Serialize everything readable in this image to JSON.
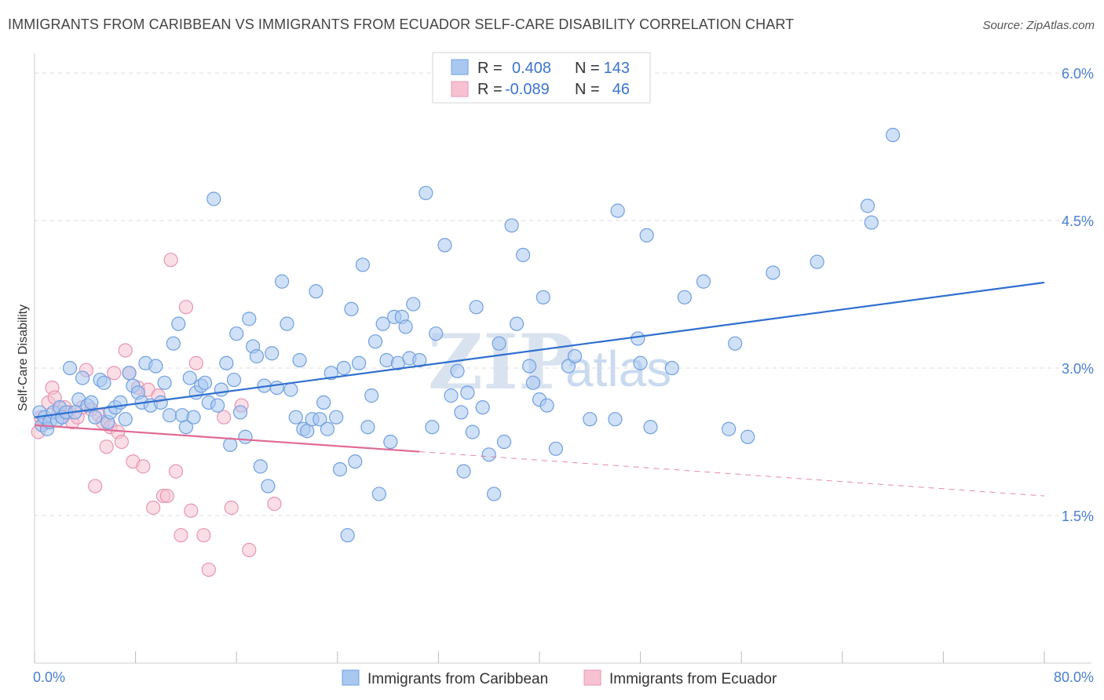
{
  "header": {
    "title": "IMMIGRANTS FROM CARIBBEAN VS IMMIGRANTS FROM ECUADOR SELF-CARE DISABILITY CORRELATION CHART",
    "source": "Source: ZipAtlas.com"
  },
  "watermark": {
    "zip": "ZIP",
    "atlas": "atlas"
  },
  "legend": {
    "rows": [
      {
        "r_label": "R =",
        "r_value": "0.408",
        "n_label": "N =",
        "n_value": "143"
      },
      {
        "r_label": "R =",
        "r_value": "-0.089",
        "n_label": "N =",
        "n_value": "46"
      }
    ]
  },
  "colors": {
    "caribbean_fill": "#a9c8f0",
    "caribbean_stroke": "#6f9fe0",
    "caribbean_line": "#2f6fcf",
    "ecuador_fill": "#f6c2d2",
    "ecuador_stroke": "#e895b0",
    "ecuador_line": "#e06a94"
  },
  "chart_data": {
    "type": "scatter",
    "title": "IMMIGRANTS FROM CARIBBEAN VS IMMIGRANTS FROM ECUADOR SELF-CARE DISABILITY CORRELATION CHART",
    "xlabel": "",
    "ylabel": "Self-Care Disability",
    "xlim": [
      0,
      80
    ],
    "ylim": [
      0,
      6.2
    ],
    "x_tick_labels": [
      "0.0%",
      "80.0%"
    ],
    "y_ticks": [
      1.5,
      3.0,
      4.5,
      6.0
    ],
    "y_tick_labels": [
      "1.5%",
      "3.0%",
      "4.5%",
      "6.0%"
    ],
    "series": [
      {
        "name": "Immigrants from Caribbean",
        "r": 0.408,
        "n": 143,
        "trend": {
          "x": [
            0,
            80
          ],
          "y": [
            2.5,
            3.87
          ]
        },
        "points": [
          [
            0.4,
            2.55
          ],
          [
            0.6,
            2.42
          ],
          [
            0.8,
            2.5
          ],
          [
            1.0,
            2.38
          ],
          [
            1.2,
            2.45
          ],
          [
            1.5,
            2.55
          ],
          [
            1.8,
            2.47
          ],
          [
            2.0,
            2.6
          ],
          [
            2.2,
            2.5
          ],
          [
            2.5,
            2.55
          ],
          [
            2.8,
            3.0
          ],
          [
            3.2,
            2.55
          ],
          [
            3.5,
            2.68
          ],
          [
            3.8,
            2.9
          ],
          [
            4.2,
            2.62
          ],
          [
            4.5,
            2.65
          ],
          [
            4.8,
            2.5
          ],
          [
            5.2,
            2.88
          ],
          [
            5.5,
            2.85
          ],
          [
            5.8,
            2.45
          ],
          [
            6.0,
            2.55
          ],
          [
            6.4,
            2.6
          ],
          [
            6.8,
            2.65
          ],
          [
            7.2,
            2.48
          ],
          [
            7.5,
            2.95
          ],
          [
            7.8,
            2.82
          ],
          [
            8.2,
            2.75
          ],
          [
            8.5,
            2.65
          ],
          [
            8.8,
            3.05
          ],
          [
            9.2,
            2.62
          ],
          [
            9.6,
            3.02
          ],
          [
            10.0,
            2.65
          ],
          [
            10.3,
            2.85
          ],
          [
            10.7,
            2.52
          ],
          [
            11.0,
            3.25
          ],
          [
            11.4,
            3.45
          ],
          [
            11.7,
            2.52
          ],
          [
            12.0,
            2.4
          ],
          [
            12.3,
            2.9
          ],
          [
            12.6,
            2.5
          ],
          [
            12.8,
            2.75
          ],
          [
            13.2,
            2.82
          ],
          [
            13.5,
            2.85
          ],
          [
            13.8,
            2.65
          ],
          [
            14.2,
            4.72
          ],
          [
            14.5,
            2.62
          ],
          [
            14.8,
            2.78
          ],
          [
            15.2,
            3.05
          ],
          [
            15.5,
            2.22
          ],
          [
            15.8,
            2.88
          ],
          [
            16.0,
            3.35
          ],
          [
            16.3,
            2.55
          ],
          [
            16.7,
            2.3
          ],
          [
            17.0,
            3.5
          ],
          [
            17.3,
            3.22
          ],
          [
            17.6,
            3.12
          ],
          [
            17.9,
            2.0
          ],
          [
            18.2,
            2.82
          ],
          [
            18.5,
            1.8
          ],
          [
            18.8,
            3.15
          ],
          [
            19.2,
            2.8
          ],
          [
            19.6,
            3.88
          ],
          [
            20.0,
            3.45
          ],
          [
            20.3,
            2.78
          ],
          [
            20.7,
            2.5
          ],
          [
            21.0,
            3.08
          ],
          [
            21.3,
            2.38
          ],
          [
            21.6,
            2.36
          ],
          [
            22.0,
            2.48
          ],
          [
            22.3,
            3.78
          ],
          [
            22.6,
            2.48
          ],
          [
            22.9,
            2.65
          ],
          [
            23.2,
            2.38
          ],
          [
            23.5,
            2.95
          ],
          [
            23.9,
            2.5
          ],
          [
            24.2,
            1.97
          ],
          [
            24.5,
            3.0
          ],
          [
            24.8,
            1.3
          ],
          [
            25.1,
            3.6
          ],
          [
            25.4,
            2.05
          ],
          [
            25.7,
            3.05
          ],
          [
            26.0,
            4.05
          ],
          [
            26.4,
            2.4
          ],
          [
            26.7,
            2.72
          ],
          [
            27.0,
            3.27
          ],
          [
            27.3,
            1.72
          ],
          [
            27.6,
            3.45
          ],
          [
            27.9,
            3.08
          ],
          [
            28.2,
            2.25
          ],
          [
            28.5,
            3.52
          ],
          [
            28.8,
            3.05
          ],
          [
            29.1,
            3.52
          ],
          [
            29.4,
            3.42
          ],
          [
            29.7,
            3.1
          ],
          [
            30.0,
            3.65
          ],
          [
            30.5,
            3.08
          ],
          [
            31.0,
            4.78
          ],
          [
            31.5,
            2.4
          ],
          [
            31.8,
            3.35
          ],
          [
            32.5,
            4.25
          ],
          [
            33.0,
            2.72
          ],
          [
            33.5,
            2.97
          ],
          [
            33.8,
            2.55
          ],
          [
            34.0,
            1.95
          ],
          [
            34.3,
            2.75
          ],
          [
            34.7,
            2.35
          ],
          [
            35.0,
            3.62
          ],
          [
            35.5,
            2.6
          ],
          [
            36.0,
            2.12
          ],
          [
            36.4,
            1.72
          ],
          [
            36.8,
            3.25
          ],
          [
            37.2,
            2.25
          ],
          [
            37.8,
            4.45
          ],
          [
            38.2,
            3.45
          ],
          [
            38.7,
            4.15
          ],
          [
            39.2,
            3.02
          ],
          [
            39.5,
            2.85
          ],
          [
            40.0,
            2.68
          ],
          [
            40.3,
            3.72
          ],
          [
            40.6,
            2.62
          ],
          [
            41.3,
            2.18
          ],
          [
            42.3,
            3.02
          ],
          [
            42.8,
            3.12
          ],
          [
            44.0,
            2.48
          ],
          [
            46.0,
            2.48
          ],
          [
            46.2,
            4.6
          ],
          [
            47.8,
            3.3
          ],
          [
            48.0,
            3.05
          ],
          [
            48.5,
            4.35
          ],
          [
            48.8,
            2.4
          ],
          [
            50.5,
            3.0
          ],
          [
            51.5,
            3.72
          ],
          [
            53.0,
            3.88
          ],
          [
            55.0,
            2.38
          ],
          [
            55.5,
            3.25
          ],
          [
            56.5,
            2.3
          ],
          [
            58.5,
            3.97
          ],
          [
            62.0,
            4.08
          ],
          [
            66.0,
            4.65
          ],
          [
            66.3,
            4.48
          ],
          [
            68.0,
            5.37
          ]
        ]
      },
      {
        "name": "Immigrants from Ecuador",
        "r": -0.089,
        "n": 46,
        "trend": {
          "x": [
            0,
            30.5
          ],
          "y": [
            2.42,
            2.15
          ]
        },
        "trend_dashed": {
          "x": [
            30.5,
            80
          ],
          "y": [
            2.15,
            1.7
          ]
        },
        "points": [
          [
            0.3,
            2.35
          ],
          [
            0.5,
            2.5
          ],
          [
            0.8,
            2.45
          ],
          [
            1.1,
            2.65
          ],
          [
            1.4,
            2.8
          ],
          [
            1.6,
            2.7
          ],
          [
            1.9,
            2.55
          ],
          [
            2.2,
            2.5
          ],
          [
            2.4,
            2.6
          ],
          [
            2.7,
            2.55
          ],
          [
            3.0,
            2.45
          ],
          [
            3.4,
            2.5
          ],
          [
            3.8,
            2.6
          ],
          [
            4.1,
            2.98
          ],
          [
            4.5,
            2.58
          ],
          [
            4.8,
            1.8
          ],
          [
            5.1,
            2.52
          ],
          [
            5.4,
            2.45
          ],
          [
            5.7,
            2.2
          ],
          [
            6.0,
            2.4
          ],
          [
            6.3,
            2.95
          ],
          [
            6.6,
            2.35
          ],
          [
            6.9,
            2.25
          ],
          [
            7.2,
            3.18
          ],
          [
            7.5,
            2.95
          ],
          [
            7.8,
            2.05
          ],
          [
            8.2,
            2.8
          ],
          [
            8.6,
            2.0
          ],
          [
            9.0,
            2.78
          ],
          [
            9.4,
            1.58
          ],
          [
            9.8,
            2.72
          ],
          [
            10.2,
            1.7
          ],
          [
            10.5,
            1.7
          ],
          [
            10.8,
            4.1
          ],
          [
            11.2,
            1.95
          ],
          [
            11.6,
            1.3
          ],
          [
            12.0,
            3.62
          ],
          [
            12.4,
            1.55
          ],
          [
            12.8,
            3.05
          ],
          [
            13.4,
            1.3
          ],
          [
            13.8,
            0.95
          ],
          [
            15.0,
            2.5
          ],
          [
            15.6,
            1.58
          ],
          [
            16.4,
            2.62
          ],
          [
            17.0,
            1.15
          ],
          [
            19.0,
            1.62
          ]
        ]
      }
    ]
  },
  "bottom_legend": {
    "items": [
      "Immigrants from Caribbean",
      "Immigrants from Ecuador"
    ]
  }
}
